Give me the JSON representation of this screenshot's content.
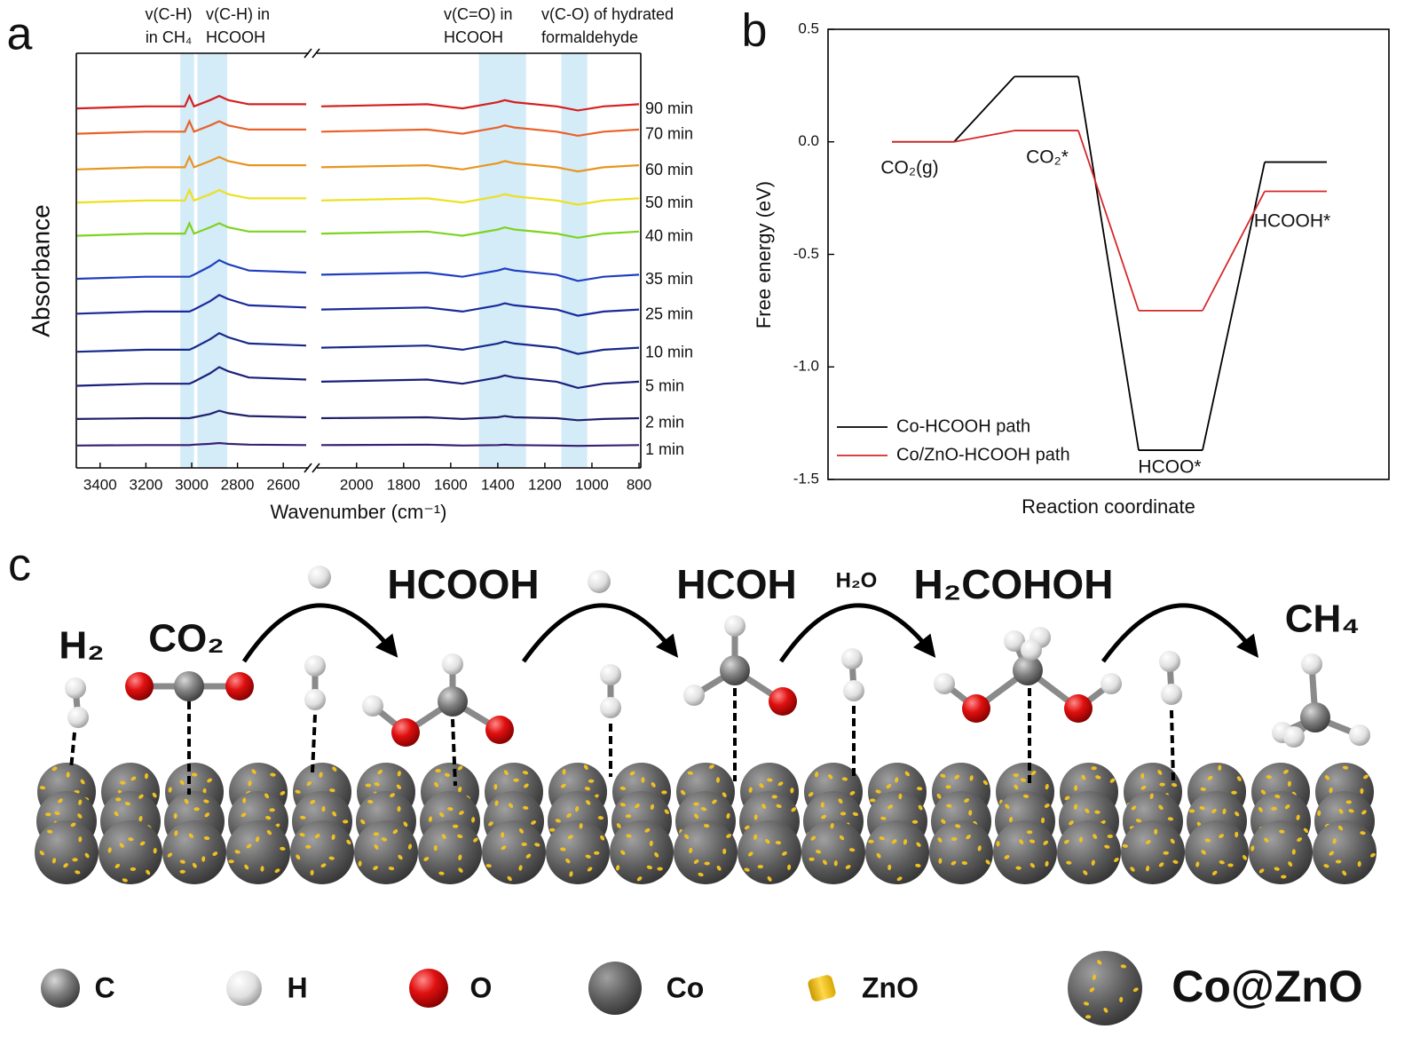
{
  "chart_data": [
    {
      "type": "line",
      "label": "a",
      "xlabel": "Wavenumber (cm⁻¹)",
      "ylabel": "Absorbance",
      "xlim": [
        3500,
        800
      ],
      "xbreak": [
        2500,
        2150
      ],
      "ylim": [
        0,
        1
      ],
      "xticks": [
        3400,
        3200,
        3000,
        2800,
        2600,
        2000,
        1800,
        1600,
        1400,
        1200,
        1000,
        800
      ],
      "x": [
        3500,
        3200,
        3030,
        3010,
        2990,
        2920,
        2880,
        2840,
        2750,
        2500,
        2300,
        2150,
        1700,
        1550,
        1400,
        1370,
        1330,
        1150,
        1060,
        950,
        800
      ],
      "series": [
        {
          "name": "90 min",
          "color": "#d42020",
          "values": [
            0.867,
            0.872,
            0.872,
            0.897,
            0.872,
            0.887,
            0.897,
            0.887,
            0.877,
            0.877,
            null,
            0.872,
            0.877,
            0.867,
            0.882,
            0.887,
            0.882,
            0.872,
            0.862,
            0.872,
            0.877
          ]
        },
        {
          "name": "70 min",
          "color": "#e8622a",
          "values": [
            0.806,
            0.811,
            0.811,
            0.836,
            0.811,
            0.826,
            0.836,
            0.826,
            0.816,
            0.816,
            null,
            0.811,
            0.816,
            0.806,
            0.821,
            0.826,
            0.821,
            0.811,
            0.801,
            0.811,
            0.816
          ]
        },
        {
          "name": "60 min",
          "color": "#e8951e",
          "values": [
            0.72,
            0.725,
            0.725,
            0.75,
            0.725,
            0.74,
            0.75,
            0.74,
            0.73,
            0.73,
            null,
            0.725,
            0.73,
            0.72,
            0.735,
            0.74,
            0.735,
            0.725,
            0.715,
            0.725,
            0.73
          ]
        },
        {
          "name": "50 min",
          "color": "#ece020",
          "values": [
            0.64,
            0.645,
            0.645,
            0.67,
            0.645,
            0.66,
            0.67,
            0.66,
            0.65,
            0.65,
            null,
            0.645,
            0.65,
            0.64,
            0.655,
            0.66,
            0.655,
            0.645,
            0.635,
            0.645,
            0.65
          ]
        },
        {
          "name": "40 min",
          "color": "#7ed321",
          "values": [
            0.56,
            0.565,
            0.565,
            0.59,
            0.565,
            0.58,
            0.59,
            0.58,
            0.57,
            0.57,
            null,
            0.565,
            0.57,
            0.56,
            0.575,
            0.58,
            0.575,
            0.565,
            0.555,
            0.565,
            0.57
          ]
        },
        {
          "name": "35 min",
          "color": "#1f3fbf",
          "values": [
            0.456,
            0.461,
            0.461,
            0.461,
            0.466,
            0.486,
            0.501,
            0.491,
            0.476,
            0.471,
            null,
            0.466,
            0.471,
            0.461,
            0.476,
            0.481,
            0.476,
            0.466,
            0.451,
            0.461,
            0.466
          ]
        },
        {
          "name": "25 min",
          "color": "#1a2a9a",
          "values": [
            0.372,
            0.377,
            0.377,
            0.377,
            0.382,
            0.402,
            0.417,
            0.407,
            0.392,
            0.387,
            null,
            0.382,
            0.387,
            0.377,
            0.392,
            0.397,
            0.392,
            0.382,
            0.367,
            0.377,
            0.382
          ]
        },
        {
          "name": "10 min",
          "color": "#162a8a",
          "values": [
            0.28,
            0.285,
            0.285,
            0.285,
            0.29,
            0.31,
            0.325,
            0.315,
            0.3,
            0.295,
            null,
            0.29,
            0.295,
            0.285,
            0.3,
            0.305,
            0.3,
            0.29,
            0.275,
            0.285,
            0.29
          ]
        },
        {
          "name": "5 min",
          "color": "#1a1f7a",
          "values": [
            0.198,
            0.203,
            0.203,
            0.203,
            0.208,
            0.228,
            0.243,
            0.233,
            0.218,
            0.213,
            null,
            0.208,
            0.213,
            0.203,
            0.218,
            0.223,
            0.218,
            0.208,
            0.193,
            0.203,
            0.208
          ]
        },
        {
          "name": "2 min",
          "color": "#20206a",
          "values": [
            0.118,
            0.12,
            0.12,
            0.12,
            0.122,
            0.13,
            0.138,
            0.132,
            0.125,
            0.122,
            null,
            0.12,
            0.122,
            0.118,
            0.122,
            0.125,
            0.122,
            0.12,
            0.115,
            0.118,
            0.12
          ]
        },
        {
          "name": "1 min",
          "color": "#3a2070",
          "values": [
            0.054,
            0.055,
            0.055,
            0.055,
            0.056,
            0.058,
            0.06,
            0.058,
            0.056,
            0.055,
            null,
            0.055,
            0.056,
            0.054,
            0.055,
            0.056,
            0.055,
            0.054,
            0.053,
            0.054,
            0.055
          ]
        }
      ],
      "bands": [
        {
          "range": [
            3050,
            2990
          ],
          "label": [
            "v(C-H)",
            "in CH₄"
          ]
        },
        {
          "range": [
            2975,
            2845
          ],
          "label": [
            "v(C-H) in",
            "HCOOH"
          ]
        },
        {
          "range": [
            1480,
            1280
          ],
          "label": [
            "v(C=O) in",
            "HCOOH"
          ]
        },
        {
          "range": [
            1130,
            1020
          ],
          "label": [
            "v(C-O) of hydrated",
            "formaldehyde"
          ]
        }
      ],
      "band_color": "#d4ebf8"
    },
    {
      "type": "step",
      "label": "b",
      "xlabel": "Reaction coordinate",
      "ylabel": "Free energy (eV)",
      "categories": [
        "CO₂(g)",
        "CO₂*",
        "HCOO*",
        "HCOOH*"
      ],
      "series": [
        {
          "name": "Co-HCOOH path",
          "color": "#000000",
          "values": [
            0,
            0.29,
            -1.37,
            -0.09
          ]
        },
        {
          "name": "Co/ZnO-HCOOH path",
          "color": "#d62728",
          "values": [
            0,
            0.05,
            -0.75,
            -0.22
          ]
        }
      ],
      "ylim": [
        -1.5,
        0.5
      ],
      "yticks": [
        -1.5,
        {
          "value": -1.0,
          "label": "-1.0"
        },
        -0.5,
        {
          "value": 0,
          "label": "0.0"
        },
        0.5
      ],
      "legend": "lower left"
    }
  ],
  "diagram": {
    "label": "c",
    "species": {
      "h2": "H₂",
      "co2": "CO₂",
      "hcooh": "HCOOH",
      "hcoh": "HCOH",
      "h2o": "H₂O",
      "h2cohoh": "H₂COHOH",
      "ch4": "CH₄"
    },
    "legend": [
      "C",
      "H",
      "O",
      "Co",
      "ZnO",
      "Co@ZnO"
    ]
  }
}
